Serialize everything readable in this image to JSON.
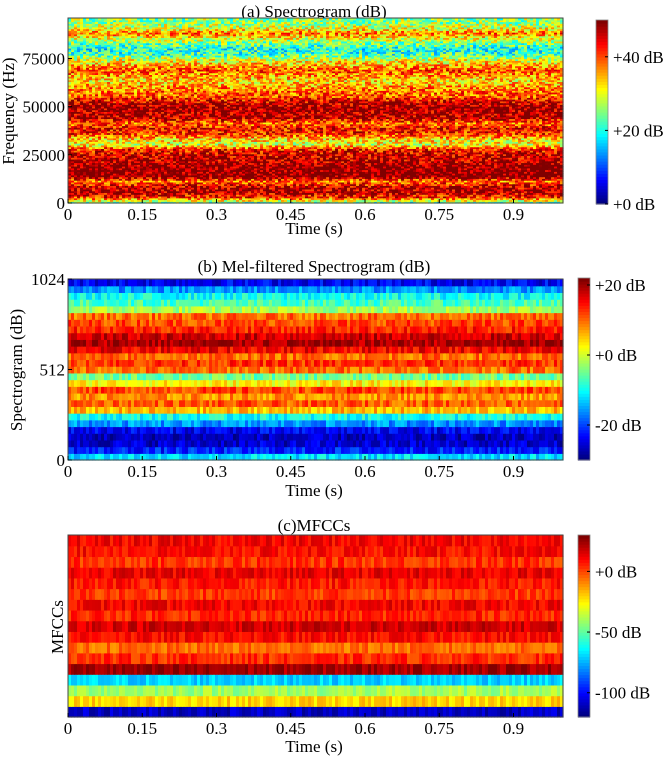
{
  "chart_data": [
    {
      "type": "heatmap",
      "title": "(a) Spectrogram (dB)",
      "xlabel": "Time (s)",
      "ylabel": "Frequency (Hz)",
      "xlim": [
        0,
        1.0
      ],
      "ylim": [
        0,
        96000
      ],
      "x_ticks": [
        0,
        0.15,
        0.3,
        0.45,
        0.6,
        0.75,
        0.9
      ],
      "x_tick_labels": [
        "0",
        "0.15",
        "0.3",
        "0.45",
        "0.6",
        "0.75",
        "0.9"
      ],
      "y_ticks": [
        0,
        25000,
        50000,
        75000
      ],
      "y_tick_labels": [
        "0",
        "25000",
        "50000",
        "75000"
      ],
      "colorbar": {
        "min": 0,
        "max": 50,
        "ticks": [
          0,
          20,
          40
        ],
        "tick_labels": [
          "+0 dB",
          "+20 dB",
          "+40 dB"
        ]
      },
      "band_levels_db_low_to_high": [
        24,
        42,
        48,
        46,
        38,
        50,
        50,
        49,
        47,
        46,
        43,
        30,
        33,
        42,
        44,
        38,
        47,
        48,
        49,
        46,
        40,
        38,
        36,
        33,
        36,
        40,
        35,
        30,
        22,
        20,
        24,
        30,
        38,
        30,
        26
      ]
    },
    {
      "type": "heatmap",
      "title": "(b) Mel-filtered Spectrogram (dB)",
      "xlabel": "Time (s)",
      "ylabel": "Spectrogram (dB)",
      "xlim": [
        0,
        1.0
      ],
      "ylim": [
        0,
        1024
      ],
      "x_ticks": [
        0,
        0.15,
        0.3,
        0.45,
        0.6,
        0.75,
        0.9
      ],
      "x_tick_labels": [
        "0",
        "0.15",
        "0.3",
        "0.45",
        "0.6",
        "0.75",
        "0.9"
      ],
      "y_ticks": [
        0,
        512,
        1024
      ],
      "y_tick_labels": [
        "0",
        "512",
        "1024"
      ],
      "colorbar": {
        "min": -30,
        "max": 22,
        "ticks": [
          -20,
          0,
          20
        ],
        "tick_labels": [
          "-20 dB",
          "+0 dB",
          "+20 dB"
        ]
      },
      "band_levels_db_low_to_high": [
        -12,
        -22,
        -26,
        -27,
        -24,
        -16,
        -10,
        6,
        11,
        8,
        12,
        3,
        -5,
        10,
        13,
        10,
        16,
        20,
        18,
        14,
        12,
        10,
        -2,
        -7,
        -10,
        -16,
        -24
      ]
    },
    {
      "type": "heatmap",
      "title": "(c)MFCCs",
      "xlabel": "Time (s)",
      "ylabel": "MFCCs",
      "xlim": [
        0,
        1.0
      ],
      "x_ticks": [
        0,
        0.15,
        0.3,
        0.45,
        0.6,
        0.75,
        0.9
      ],
      "x_tick_labels": [
        "0",
        "0.15",
        "0.3",
        "0.45",
        "0.6",
        "0.75",
        "0.9"
      ],
      "colorbar": {
        "min": -120,
        "max": 30,
        "ticks": [
          -100,
          -50,
          0
        ],
        "tick_labels": [
          "-100 dB",
          "-50 dB",
          "+0 dB"
        ]
      },
      "band_levels_db_low_to_high": [
        -110,
        -20,
        -40,
        -70,
        25,
        5,
        -5,
        10,
        18,
        6,
        12,
        3,
        8,
        14,
        4,
        10,
        12
      ]
    }
  ]
}
